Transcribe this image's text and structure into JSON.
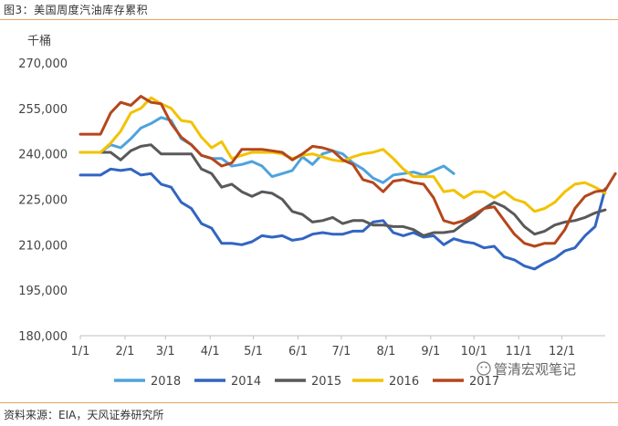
{
  "caption": "图3：美国周度汽油库存累积",
  "source": "资料来源：EIA，天风证券研究所",
  "watermark": "管清宏观笔记",
  "chart_data": {
    "type": "line",
    "title": "",
    "unit_label": "千桶",
    "xlabel": "",
    "ylabel": "",
    "ylim": [
      180000,
      270000
    ],
    "yticks": [
      180000,
      195000,
      210000,
      225000,
      240000,
      255000,
      270000
    ],
    "ytick_labels": [
      "180,000",
      "195,000",
      "210,000",
      "225,000",
      "240,000",
      "255,000",
      "270,000"
    ],
    "xlim": [
      0,
      52
    ],
    "xtick_positions": [
      0,
      4.43,
      8.43,
      12.86,
      17.14,
      21.57,
      25.86,
      30.29,
      34.71,
      39,
      43.43,
      47.71
    ],
    "xtick_labels": [
      "1/1",
      "2/1",
      "3/1",
      "4/1",
      "5/1",
      "6/1",
      "7/1",
      "8/1",
      "9/1",
      "10/1",
      "11/1",
      "12/1"
    ],
    "grid": false,
    "legend_position": "bottom",
    "series": [
      {
        "name": "2018",
        "color": "#4ea3dd",
        "values": [
          240500,
          240500,
          240500,
          243000,
          242000,
          245000,
          248500,
          250000,
          252000,
          251000,
          245000,
          243000,
          239500,
          238500,
          238500,
          236000,
          236500,
          237500,
          236000,
          232500,
          233500,
          234500,
          239000,
          236500,
          240000,
          241000,
          240000,
          237000,
          235000,
          232000,
          230500,
          233000,
          233500,
          234000,
          233000,
          234500,
          236000,
          233500
        ]
      },
      {
        "name": "2014",
        "color": "#3265c2",
        "values": [
          233000,
          233000,
          233000,
          235000,
          234500,
          235000,
          233000,
          233500,
          230000,
          229000,
          224000,
          222000,
          217000,
          215500,
          210500,
          210500,
          210000,
          211000,
          213000,
          212500,
          213000,
          211500,
          212000,
          213500,
          214000,
          213500,
          213500,
          214500,
          214500,
          217500,
          218000,
          214000,
          213000,
          214000,
          212500,
          213000,
          210000,
          212000,
          211000,
          210500,
          209000,
          209500,
          206000,
          205000,
          203000,
          202000,
          204000,
          205500,
          208000,
          209000,
          213000,
          216000,
          228500
        ]
      },
      {
        "name": "2015",
        "color": "#595959",
        "values": [
          240500,
          240500,
          240500,
          240500,
          238000,
          241000,
          242500,
          243000,
          240000,
          240000,
          240000,
          240000,
          235000,
          233500,
          229000,
          230000,
          227500,
          226000,
          227500,
          227000,
          225000,
          221000,
          220000,
          217500,
          218000,
          219000,
          217000,
          218000,
          218000,
          216500,
          216500,
          216000,
          216000,
          215000,
          213000,
          214000,
          214000,
          214500,
          217000,
          219000,
          222000,
          224000,
          222500,
          220000,
          216000,
          213500,
          214500,
          216500,
          217500,
          218000,
          219000,
          220500,
          221500
        ]
      },
      {
        "name": "2016",
        "color": "#f2c200",
        "values": [
          240500,
          240500,
          240500,
          243500,
          247500,
          253500,
          255000,
          258500,
          256500,
          255000,
          251000,
          250500,
          245500,
          242000,
          244000,
          238500,
          239500,
          240500,
          240500,
          240500,
          240000,
          238500,
          239500,
          240000,
          239000,
          238000,
          237500,
          239000,
          240000,
          240500,
          241500,
          238500,
          235000,
          232500,
          232500,
          232500,
          227500,
          228000,
          225500,
          227500,
          227500,
          225500,
          227500,
          225000,
          224000,
          221000,
          222000,
          224000,
          227500,
          230000,
          230500,
          229000,
          227000
        ]
      },
      {
        "name": "2017",
        "color": "#b5461b",
        "values": [
          246500,
          246500,
          246500,
          253500,
          257000,
          256000,
          259000,
          257000,
          256500,
          250000,
          245500,
          243000,
          239500,
          238500,
          236000,
          237000,
          241500,
          241500,
          241500,
          241000,
          240500,
          238000,
          240000,
          242500,
          242000,
          241000,
          238000,
          236500,
          231500,
          230500,
          227500,
          231000,
          231500,
          230500,
          230000,
          225500,
          218000,
          217000,
          218000,
          220000,
          222000,
          222500,
          218000,
          213500,
          210500,
          209500,
          210500,
          210500,
          215000,
          222000,
          226000,
          227500,
          228000,
          233500
        ]
      }
    ]
  }
}
